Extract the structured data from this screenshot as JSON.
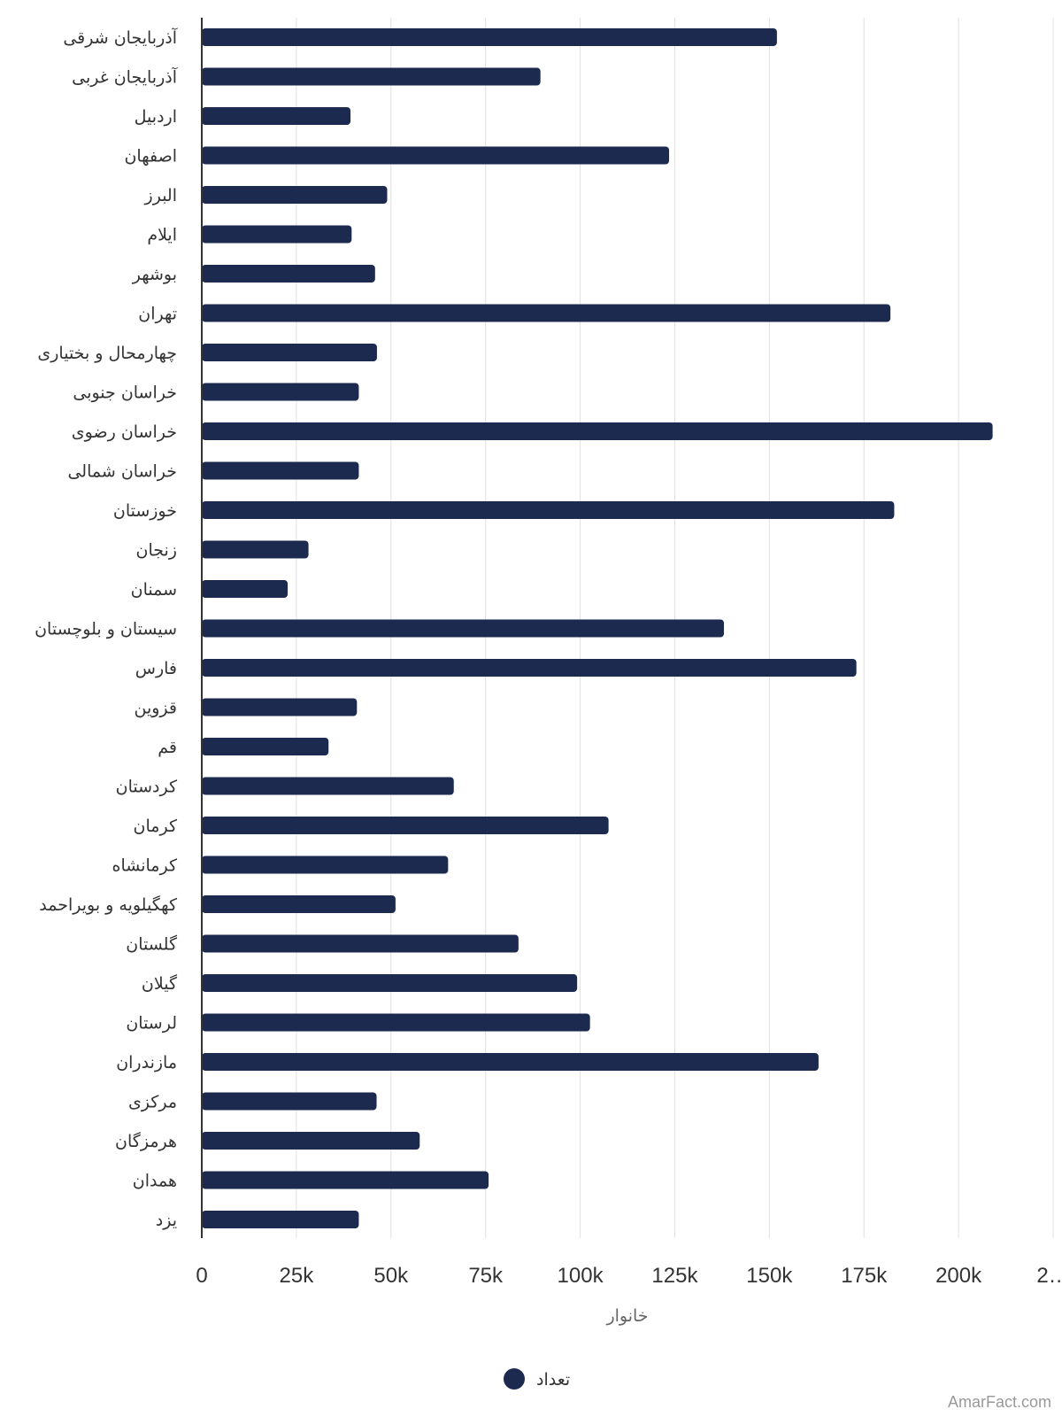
{
  "chart_data": {
    "type": "bar",
    "orientation": "horizontal",
    "categories": [
      "آذربایجان شرقی",
      "آذربایجان غربی",
      "اردبیل",
      "اصفهان",
      "البرز",
      "ایلام",
      "بوشهر",
      "تهران",
      "چهارمحال و بختیاری",
      "خراسان جنوبی",
      "خراسان رضوی",
      "خراسان شمالی",
      "خوزستان",
      "زنجان",
      "سمنان",
      "سیستان و بلوچستان",
      "فارس",
      "قزوین",
      "قم",
      "کردستان",
      "کرمان",
      "کرمانشاه",
      "کهگیلویه و بویراحمد",
      "گلستان",
      "گیلان",
      "لرستان",
      "مازندران",
      "مرکزی",
      "هرمزگان",
      "همدان",
      "یزد"
    ],
    "series": [
      {
        "name": "تعداد",
        "color": "#1b2a4e",
        "values": [
          152000,
          89500,
          39300,
          123500,
          49000,
          39600,
          45800,
          182000,
          46300,
          41500,
          209000,
          41500,
          183000,
          28200,
          22700,
          138000,
          173000,
          41000,
          33500,
          66600,
          107500,
          65100,
          51200,
          83700,
          99200,
          102600,
          163000,
          46200,
          57600,
          75800,
          41500
        ]
      }
    ],
    "xlabel": "خانوار",
    "ylabel": "",
    "xlim": [
      0,
      225000
    ],
    "x_ticks": [
      "0",
      "25k",
      "50k",
      "75k",
      "100k",
      "125k",
      "150k",
      "175k",
      "200k",
      "2…"
    ],
    "grid": "vertical",
    "legend": "bottom-center"
  },
  "legend_label": "تعداد",
  "credit": "AmarFact.com"
}
